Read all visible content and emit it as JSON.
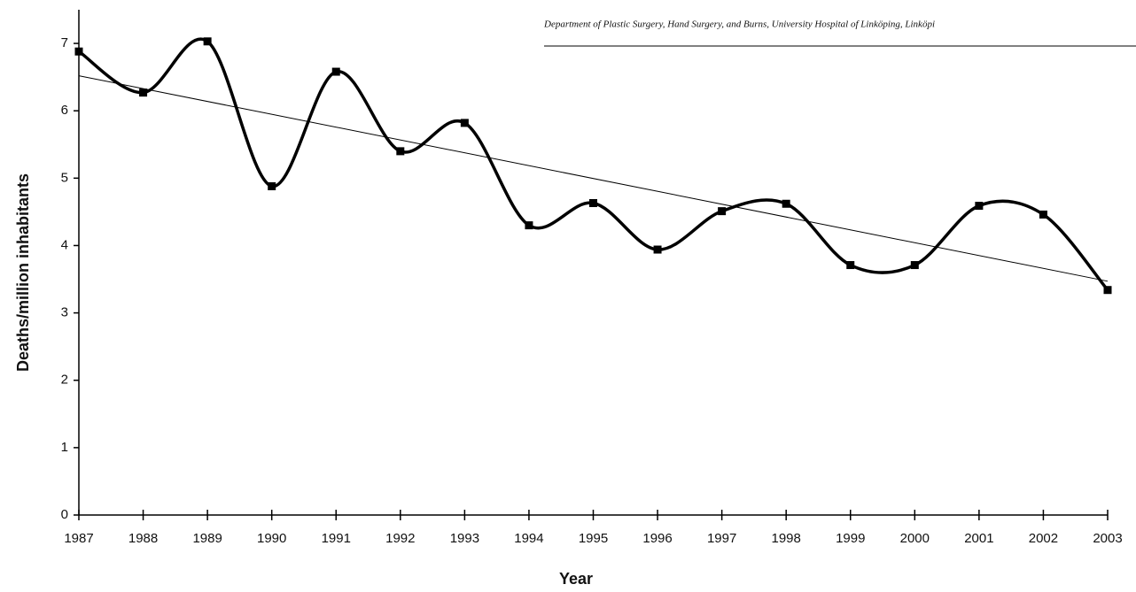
{
  "chart_data": {
    "type": "line",
    "annotation": "Department of Plastic Surgery, Hand Surgery, and Burns, University Hospital of Linköping, Linköpi",
    "xlabel": "Year",
    "ylabel": "Deaths/million inhabitants",
    "x": [
      1987,
      1988,
      1989,
      1990,
      1991,
      1992,
      1993,
      1994,
      1995,
      1996,
      1997,
      1998,
      1999,
      2000,
      2001,
      2002,
      2003
    ],
    "series": [
      {
        "color": "#000000",
        "values": [
          6.88,
          6.27,
          7.03,
          4.88,
          6.58,
          5.4,
          5.82,
          4.3,
          4.63,
          3.94,
          4.51,
          4.62,
          3.71,
          3.71,
          4.59,
          4.46,
          3.34
        ]
      }
    ],
    "trend": {
      "x": [
        1987,
        2003
      ],
      "values": [
        6.52,
        3.47
      ]
    },
    "xlim": [
      1987,
      2003
    ],
    "xticks": [
      1987,
      1988,
      1989,
      1990,
      1991,
      1992,
      1993,
      1994,
      1995,
      1996,
      1997,
      1998,
      1999,
      2000,
      2001,
      2002,
      2003
    ],
    "ylim": [
      0,
      7.5
    ],
    "yticks": [
      0,
      1,
      2,
      3,
      4,
      5,
      6,
      7
    ]
  }
}
